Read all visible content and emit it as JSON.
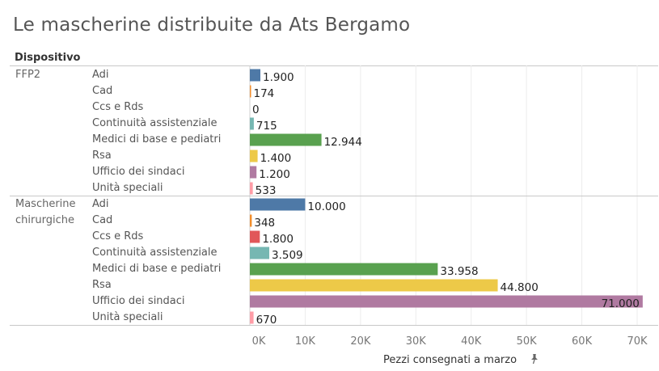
{
  "title": "Le mascherine distribuite da Ats Bergamo",
  "dimension_header": "Dispositivo",
  "axis_title": "Pezzi consegnati a marzo",
  "colors": {
    "Adi": "#4e79a7",
    "Cad": "#f28e2b",
    "Ccs e Rds": "#e15759",
    "Continuità assistenziale": "#76b7b2",
    "Medici di base e pediatri": "#59a14f",
    "Rsa": "#edc948",
    "Ufficio dei sindaci": "#b07aa1",
    "Unità speciali": "#ff9da7"
  },
  "chart_data": {
    "type": "bar",
    "orientation": "horizontal",
    "title": "Le mascherine distribuite da Ats Bergamo",
    "xlabel": "Pezzi consegnati a marzo",
    "ylabel": "Dispositivo",
    "xlim": [
      0,
      70000
    ],
    "x_ticks": [
      "0K",
      "10K",
      "20K",
      "30K",
      "40K",
      "50K",
      "60K",
      "70K"
    ],
    "x_tick_values": [
      0,
      10000,
      20000,
      30000,
      40000,
      50000,
      60000,
      70000
    ],
    "grid": true,
    "groups": [
      {
        "name": "FFP2",
        "categories": [
          "Adi",
          "Cad",
          "Ccs e Rds",
          "Continuità assistenziale",
          "Medici di base e pediatri",
          "Rsa",
          "Ufficio dei sindaci",
          "Unità speciali"
        ],
        "values": [
          1900,
          174,
          0,
          715,
          12944,
          1400,
          1200,
          533
        ],
        "labels": [
          "1.900",
          "174",
          "0",
          "715",
          "12.944",
          "1.400",
          "1.200",
          "533"
        ]
      },
      {
        "name": "Mascherine chirurgiche",
        "name_lines": [
          "Mascherine",
          "chirurgiche"
        ],
        "categories": [
          "Adi",
          "Cad",
          "Ccs e Rds",
          "Continuità assistenziale",
          "Medici di base e pediatri",
          "Rsa",
          "Ufficio dei sindaci",
          "Unità speciali"
        ],
        "values": [
          10000,
          348,
          1800,
          3509,
          33958,
          44800,
          71000,
          670
        ],
        "labels": [
          "10.000",
          "348",
          "1.800",
          "3.509",
          "33.958",
          "44.800",
          "71.000",
          "670"
        ]
      }
    ]
  }
}
